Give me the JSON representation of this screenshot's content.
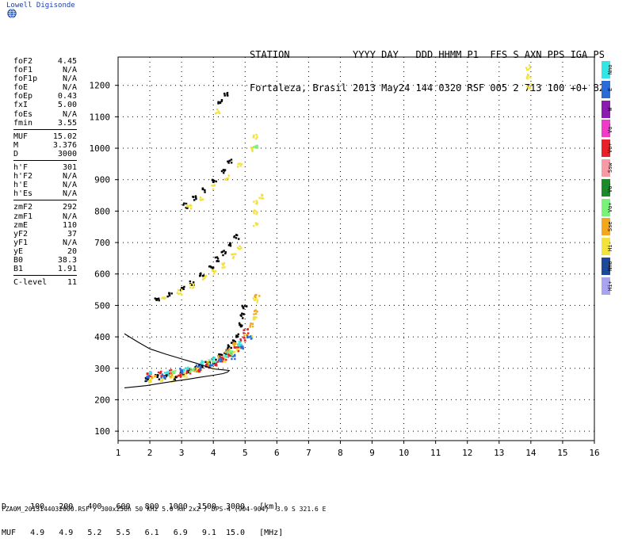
{
  "app": {
    "logo_text": "Lowell Digisonde"
  },
  "header": {
    "line1": "STATION           YYYY DAY   DDD HHMM P1  FFS S AXN PPS IGA PS",
    "line2": "Fortaleza, Brasil 2013 May24 144 0320 RSF 005 2 713 100 +0+ B2"
  },
  "params": [
    [
      "foF2",
      "4.45"
    ],
    [
      "foF1",
      "N/A"
    ],
    [
      "foF1p",
      "N/A"
    ],
    [
      "foE",
      "N/A"
    ],
    [
      "foEp",
      "0.43"
    ],
    [
      "fxI",
      "5.00"
    ],
    [
      "foEs",
      "N/A"
    ],
    [
      "fmin",
      "3.55"
    ],
    "sep",
    [
      "MUF",
      "15.02"
    ],
    [
      "M",
      "3.376"
    ],
    [
      "D",
      "3000"
    ],
    "sep",
    [
      "h'F",
      "301"
    ],
    [
      "h'F2",
      "N/A"
    ],
    [
      "h'E",
      "N/A"
    ],
    [
      "h'Es",
      "N/A"
    ],
    "sep",
    [
      "zmF2",
      "292"
    ],
    [
      "zmF1",
      "N/A"
    ],
    [
      "zmE",
      "110"
    ],
    [
      "yF2",
      "37"
    ],
    [
      "yF1",
      "N/A"
    ],
    [
      "yE",
      "20"
    ],
    [
      "B0",
      "38.3"
    ],
    [
      "B1",
      "1.91"
    ],
    "sep",
    [
      "C-level",
      "11"
    ]
  ],
  "legend": [
    {
      "label": "Nno",
      "color": "#33e6e6"
    },
    {
      "label": "E",
      "color": "#2a6bd8"
    },
    {
      "label": "W",
      "color": "#8a1ab0"
    },
    {
      "label": "Vo-",
      "color": "#f03ac8"
    },
    {
      "label": "Vo+",
      "color": "#e8202a"
    },
    {
      "label": "Ssw",
      "color": "#f79aa6"
    },
    {
      "label": "Vo-",
      "color": "#1c8a2a"
    },
    {
      "label": "Vo+",
      "color": "#7af27a"
    },
    {
      "label": "Sse",
      "color": "#f2a81a"
    },
    {
      "label": "Hi-",
      "color": "#f2e23a"
    },
    {
      "label": "Nno",
      "color": "#1c4a9a"
    },
    {
      "label": "Hi+",
      "color": "#a9a4f0"
    }
  ],
  "muf_table": {
    "line1": "D     100   200   400   600   800  1000  1500  3000   [km]",
    "line2": "MUF   4.9   4.9   5.2   5.5   6.1   6.9   9.1  15.0   [MHz]"
  },
  "footer": "FZA0M_2013144032000.RSF / 300x256h 50 kHz 5.0 km 2x2 / DPS-4 (904-904)  3.9 S 321.6 E",
  "chart_data": {
    "type": "scatter",
    "title": "",
    "xlabel": "",
    "ylabel": "",
    "xlim": [
      1,
      16
    ],
    "ylim": [
      70,
      1290
    ],
    "xticks": [
      1,
      2,
      3,
      4,
      5,
      6,
      7,
      8,
      9,
      10,
      11,
      12,
      13,
      14,
      15,
      16
    ],
    "yticks": [
      100,
      200,
      300,
      400,
      500,
      600,
      700,
      800,
      900,
      1000,
      1100,
      1200
    ],
    "grid": true,
    "series": [
      {
        "color": "#000000",
        "points": [
          [
            1.9,
            268
          ],
          [
            2.2,
            275
          ],
          [
            2.5,
            278
          ],
          [
            2.8,
            272
          ],
          [
            3.0,
            285
          ],
          [
            3.2,
            295
          ],
          [
            3.4,
            300
          ],
          [
            3.6,
            310
          ],
          [
            3.8,
            318
          ],
          [
            4.0,
            325
          ],
          [
            4.2,
            340
          ],
          [
            4.4,
            355
          ],
          [
            4.5,
            370
          ],
          [
            4.6,
            390
          ],
          [
            4.7,
            410
          ],
          [
            4.8,
            440
          ],
          [
            4.9,
            470
          ],
          [
            4.95,
            500
          ],
          [
            2.2,
            520
          ],
          [
            2.6,
            535
          ],
          [
            3.0,
            555
          ],
          [
            3.3,
            575
          ],
          [
            3.6,
            600
          ],
          [
            3.9,
            625
          ],
          [
            4.1,
            650
          ],
          [
            4.3,
            670
          ],
          [
            4.5,
            695
          ],
          [
            4.7,
            720
          ],
          [
            3.1,
            820
          ],
          [
            3.4,
            845
          ],
          [
            3.7,
            870
          ],
          [
            4.0,
            900
          ],
          [
            4.3,
            930
          ],
          [
            4.5,
            960
          ],
          [
            4.2,
            1150
          ],
          [
            4.35,
            1175
          ]
        ]
      },
      {
        "color": "#f2e23a",
        "points": [
          [
            2.0,
            262
          ],
          [
            2.4,
            270
          ],
          [
            2.7,
            268
          ],
          [
            3.1,
            278
          ],
          [
            3.5,
            295
          ],
          [
            3.9,
            310
          ],
          [
            4.3,
            330
          ],
          [
            4.7,
            360
          ],
          [
            5.2,
            400
          ],
          [
            5.3,
            460
          ],
          [
            5.3,
            520
          ],
          [
            2.4,
            530
          ],
          [
            2.9,
            545
          ],
          [
            3.3,
            565
          ],
          [
            3.7,
            590
          ],
          [
            4.0,
            610
          ],
          [
            4.3,
            630
          ],
          [
            4.6,
            660
          ],
          [
            4.8,
            690
          ],
          [
            5.3,
            800
          ],
          [
            5.3,
            830
          ],
          [
            5.3,
            760
          ],
          [
            5.5,
            850
          ],
          [
            3.2,
            815
          ],
          [
            3.6,
            840
          ],
          [
            4.0,
            880
          ],
          [
            4.4,
            910
          ],
          [
            4.8,
            950
          ],
          [
            5.2,
            1000
          ],
          [
            5.3,
            1040
          ],
          [
            4.1,
            1120
          ],
          [
            13.9,
            1230
          ],
          [
            13.9,
            1200
          ],
          [
            13.9,
            1260
          ]
        ]
      },
      {
        "color": "#f2a81a",
        "points": [
          [
            2.1,
            272
          ],
          [
            2.6,
            282
          ],
          [
            3.0,
            290
          ],
          [
            3.4,
            300
          ],
          [
            3.8,
            315
          ],
          [
            4.2,
            335
          ],
          [
            4.5,
            350
          ],
          [
            4.8,
            375
          ],
          [
            5.0,
            405
          ],
          [
            5.15,
            440
          ],
          [
            5.3,
            480
          ],
          [
            5.35,
            530
          ],
          [
            4.4,
            360
          ],
          [
            4.6,
            380
          ]
        ]
      },
      {
        "color": "#e8202a",
        "points": [
          [
            1.95,
            280
          ],
          [
            2.3,
            285
          ],
          [
            2.6,
            290
          ],
          [
            2.9,
            282
          ],
          [
            3.2,
            290
          ],
          [
            3.5,
            300
          ],
          [
            3.8,
            310
          ],
          [
            4.1,
            318
          ],
          [
            4.3,
            330
          ],
          [
            4.5,
            345
          ],
          [
            4.7,
            365
          ],
          [
            4.9,
            395
          ],
          [
            5.0,
            420
          ]
        ]
      },
      {
        "color": "#2a6bd8",
        "points": [
          [
            1.9,
            272
          ],
          [
            2.4,
            276
          ],
          [
            3.0,
            295
          ],
          [
            3.5,
            305
          ],
          [
            3.9,
            312
          ],
          [
            4.2,
            328
          ],
          [
            4.6,
            340
          ],
          [
            4.9,
            370
          ],
          [
            5.1,
            400
          ]
        ]
      },
      {
        "color": "#33e6e6",
        "points": [
          [
            2.0,
            285
          ],
          [
            2.5,
            288
          ],
          [
            3.1,
            300
          ],
          [
            3.6,
            320
          ],
          [
            4.0,
            330
          ],
          [
            4.4,
            345
          ],
          [
            4.8,
            380
          ]
        ]
      },
      {
        "color": "#7af27a",
        "points": [
          [
            2.7,
            288
          ],
          [
            3.3,
            295
          ],
          [
            3.9,
            322
          ],
          [
            4.5,
            352
          ],
          [
            5.3,
            1010
          ]
        ]
      }
    ],
    "profile_curve": [
      [
        1.2,
        410
      ],
      [
        1.6,
        385
      ],
      [
        2.0,
        362
      ],
      [
        2.5,
        345
      ],
      [
        3.0,
        330
      ],
      [
        3.5,
        315
      ],
      [
        3.8,
        305
      ],
      [
        4.0,
        298
      ],
      [
        4.2,
        296
      ],
      [
        4.4,
        294
      ],
      [
        4.5,
        293
      ],
      [
        4.45,
        288
      ],
      [
        4.3,
        283
      ],
      [
        4.0,
        278
      ],
      [
        3.6,
        272
      ],
      [
        3.2,
        265
      ],
      [
        2.7,
        258
      ],
      [
        2.2,
        250
      ],
      [
        1.9,
        245
      ],
      [
        1.6,
        242
      ],
      [
        1.2,
        238
      ]
    ]
  }
}
